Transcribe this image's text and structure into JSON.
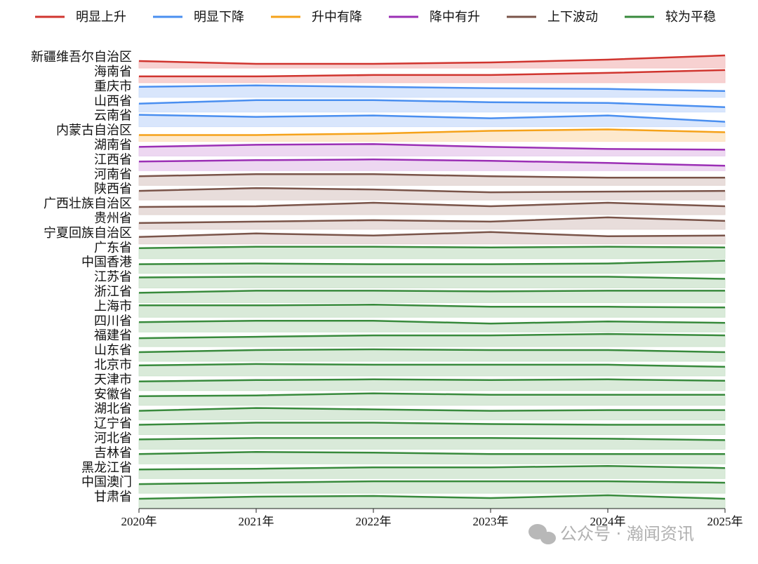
{
  "chart_data": {
    "type": "ridgeline",
    "x": [
      "2020年",
      "2021年",
      "2022年",
      "2023年",
      "2024年",
      "2025年"
    ],
    "watermark": "公众号 · 瀚闻资讯",
    "groups": [
      {
        "name": "明显上升",
        "color": "#d0352f",
        "fill": "#f5c6c6",
        "rows": [
          {
            "name": "新疆维吾尔自治区",
            "values": [
              10,
              6,
              6,
              8,
              12,
              18
            ]
          },
          {
            "name": "海南省",
            "values": [
              9,
              9,
              11,
              11,
              14,
              18
            ]
          }
        ]
      },
      {
        "name": "明显下降",
        "color": "#4a8ff0",
        "fill": "#cfe0fb",
        "rows": [
          {
            "name": "重庆市",
            "values": [
              15,
              17,
              15,
              13,
              12,
              9
            ]
          },
          {
            "name": "山西省",
            "values": [
              12,
              17,
              17,
              14,
              13,
              7
            ]
          },
          {
            "name": "云南省",
            "values": [
              17,
              14,
              16,
              12,
              16,
              7
            ]
          }
        ]
      },
      {
        "name": "升中有降",
        "color": "#f5a21a",
        "fill": "#fde3c0",
        "rows": [
          {
            "name": "内蒙古自治区",
            "values": [
              9,
              9,
              11,
              15,
              17,
              13
            ]
          }
        ]
      },
      {
        "name": "降中有升",
        "color": "#9b2fb5",
        "fill": "#e8cdee",
        "rows": [
          {
            "name": "湖南省",
            "values": [
              13,
              16,
              17,
              13,
              10,
              9
            ]
          },
          {
            "name": "江西省",
            "values": [
              13,
              15,
              16,
              14,
              11,
              7
            ]
          }
        ]
      },
      {
        "name": "上下波动",
        "color": "#7a5449",
        "fill": "#e2d5d2",
        "rows": [
          {
            "name": "河南省",
            "values": [
              13,
              16,
              16,
              13,
              11,
              11
            ]
          },
          {
            "name": "陕西省",
            "values": [
              13,
              17,
              15,
              11,
              12,
              13
            ]
          },
          {
            "name": "广西壮族自治区",
            "values": [
              11,
              12,
              17,
              12,
              17,
              12
            ]
          },
          {
            "name": "贵州省",
            "values": [
              9,
              11,
              13,
              11,
              17,
              12
            ]
          },
          {
            "name": "宁夏回族自治区",
            "values": [
              10,
              15,
              12,
              17,
              11,
              12
            ]
          }
        ]
      },
      {
        "name": "较为平稳",
        "color": "#388a3c",
        "fill": "#cfe5d0",
        "rows": [
          {
            "name": "广东省",
            "values": [
              15,
              17,
              17,
              16,
              17,
              16
            ]
          },
          {
            "name": "中国香港",
            "values": [
              13,
              14,
              13,
              13,
              14,
              18
            ]
          },
          {
            "name": "江苏省",
            "values": [
              15,
              16,
              16,
              16,
              16,
              13
            ]
          },
          {
            "name": "浙江省",
            "values": [
              14,
              17,
              17,
              16,
              17,
              17
            ]
          },
          {
            "name": "上海市",
            "values": [
              17,
              17,
              18,
              15,
              15,
              14
            ]
          },
          {
            "name": "四川省",
            "values": [
              14,
              16,
              16,
              12,
              15,
              13
            ]
          },
          {
            "name": "福建省",
            "values": [
              12,
              14,
              16,
              16,
              18,
              16
            ]
          },
          {
            "name": "山东省",
            "values": [
              13,
              16,
              17,
              16,
              16,
              13
            ]
          },
          {
            "name": "北京市",
            "values": [
              15,
              17,
              16,
              16,
              16,
              13
            ]
          },
          {
            "name": "天津市",
            "values": [
              13,
              15,
              16,
              15,
              16,
              14
            ]
          },
          {
            "name": "安徽省",
            "values": [
              13,
              14,
              17,
              15,
              15,
              15
            ]
          },
          {
            "name": "湖北省",
            "values": [
              13,
              17,
              15,
              13,
              14,
              14
            ]
          },
          {
            "name": "辽宁省",
            "values": [
              14,
              17,
              17,
              15,
              14,
              14
            ]
          },
          {
            "name": "河北省",
            "values": [
              14,
              16,
              16,
              16,
              15,
              13
            ]
          },
          {
            "name": "吉林省",
            "values": [
              14,
              17,
              16,
              14,
              14,
              14
            ]
          },
          {
            "name": "黑龙江省",
            "values": [
              13,
              14,
              16,
              16,
              18,
              15
            ]
          },
          {
            "name": "中国澳门",
            "values": [
              13,
              15,
              17,
              17,
              17,
              15
            ]
          },
          {
            "name": "甘肃省",
            "values": [
              13,
              16,
              17,
              14,
              18,
              13
            ]
          }
        ]
      }
    ]
  }
}
